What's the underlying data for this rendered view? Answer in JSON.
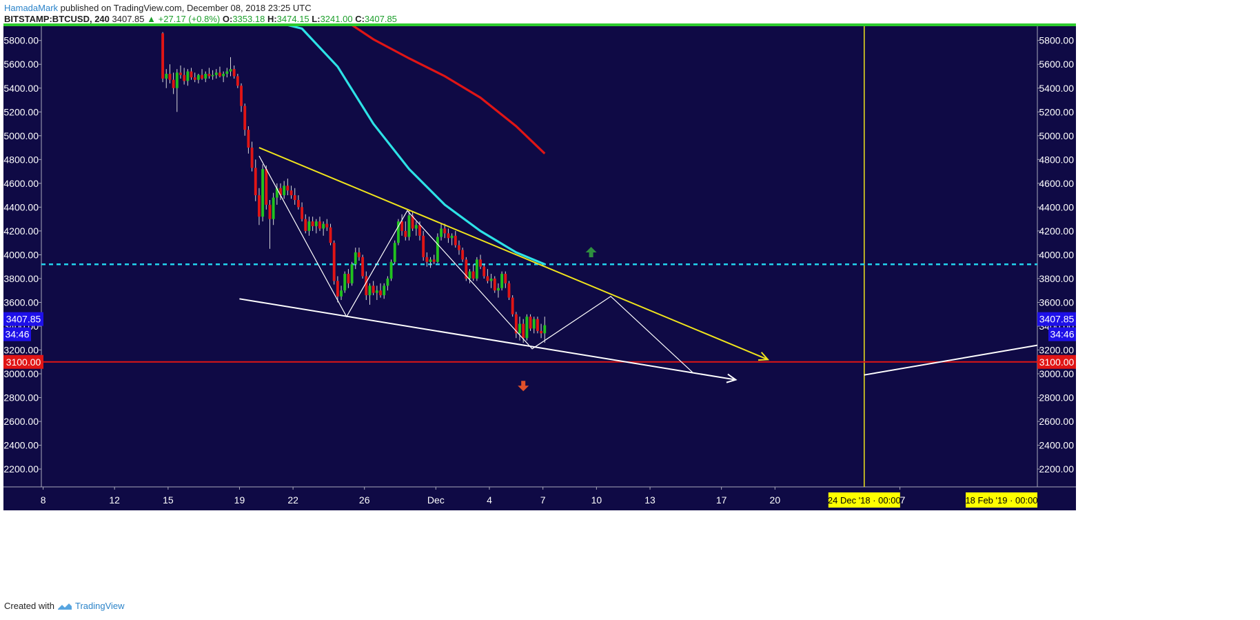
{
  "header": {
    "author": "HamadaMark",
    "published": " published on TradingView.com, December 08, 2018 23:25 UTC",
    "symbol": "BITSTAMP:BTCUSD, 240",
    "last": "3407.85",
    "change": "▲ +27.17 (+0.8%)",
    "o_label": "O:",
    "o": "3353.18",
    "h_label": "H:",
    "h": "3474.15",
    "l_label": "L:",
    "l": "3241.00",
    "c_label": "C:",
    "c": "3407.85"
  },
  "footer": {
    "created_with": "Created with",
    "brand": "TradingView"
  },
  "colors": {
    "background": "#0f0a45",
    "bull": "#21c21f",
    "bear": "#e01515",
    "ma_fast": "#2de2e6",
    "ma_slow": "#e01515",
    "trendline": "#f0e41c",
    "support_line": "#ffffff",
    "dashed_level": "#22d4ee",
    "red_level": "#e01515",
    "price_label": "#1e10e8"
  },
  "chart_data": {
    "type": "candlestick",
    "symbol": "BITSTAMP:BTCUSD",
    "interval": "240",
    "ylim": [
      2050,
      5920
    ],
    "y_ticks": [
      "5800.00",
      "5600.00",
      "5400.00",
      "5200.00",
      "5000.00",
      "4800.00",
      "4600.00",
      "4400.00",
      "4200.00",
      "4000.00",
      "3800.00",
      "3600.00",
      "3400.00",
      "3200.00",
      "3000.00",
      "2800.00",
      "2600.00",
      "2400.00",
      "2200.00"
    ],
    "x_ticks": [
      "8",
      "12",
      "15",
      "19",
      "22",
      "26",
      "Dec",
      "4",
      "7",
      "10",
      "13",
      "17",
      "20",
      "27"
    ],
    "x_tick_pos": [
      8,
      12,
      15,
      19,
      22,
      26,
      30,
      33,
      36,
      39,
      42,
      46,
      49,
      56
    ],
    "x_range": [
      7.9,
      63.7
    ],
    "current_price_label": "3407.85",
    "countdown_label": "34:46",
    "level_label": "3100.00",
    "dashed_level": 3920,
    "red_level": 3100,
    "date_markers": [
      {
        "label": "24 Dec '18 · 00:00",
        "x": 54
      },
      {
        "label": "18 Feb '19 · 00:00",
        "x": 63
      }
    ],
    "candles": [
      [
        14.7,
        5860,
        5870,
        5450,
        5480
      ],
      [
        14.9,
        5480,
        5560,
        5400,
        5520
      ],
      [
        15.1,
        5520,
        5600,
        5440,
        5470
      ],
      [
        15.3,
        5470,
        5530,
        5350,
        5400
      ],
      [
        15.5,
        5400,
        5560,
        5200,
        5530
      ],
      [
        15.7,
        5530,
        5590,
        5480,
        5510
      ],
      [
        15.9,
        5510,
        5570,
        5430,
        5460
      ],
      [
        16.1,
        5460,
        5560,
        5420,
        5540
      ],
      [
        16.3,
        5540,
        5570,
        5470,
        5490
      ],
      [
        16.5,
        5490,
        5530,
        5450,
        5470
      ],
      [
        16.7,
        5470,
        5520,
        5440,
        5510
      ],
      [
        16.9,
        5510,
        5560,
        5470,
        5480
      ],
      [
        17.1,
        5480,
        5540,
        5450,
        5520
      ],
      [
        17.3,
        5520,
        5570,
        5480,
        5500
      ],
      [
        17.5,
        5500,
        5550,
        5470,
        5510
      ],
      [
        17.7,
        5510,
        5560,
        5480,
        5530
      ],
      [
        17.9,
        5530,
        5580,
        5490,
        5500
      ],
      [
        18.1,
        5500,
        5540,
        5450,
        5520
      ],
      [
        18.3,
        5520,
        5570,
        5490,
        5540
      ],
      [
        18.5,
        5540,
        5660,
        5500,
        5560
      ],
      [
        18.7,
        5560,
        5590,
        5480,
        5500
      ],
      [
        18.9,
        5500,
        5520,
        5400,
        5420
      ],
      [
        19.1,
        5420,
        5440,
        5200,
        5250
      ],
      [
        19.3,
        5250,
        5270,
        5000,
        5050
      ],
      [
        19.5,
        5050,
        5080,
        4850,
        4900
      ],
      [
        19.7,
        4900,
        4950,
        4700,
        4730
      ],
      [
        19.9,
        4730,
        4800,
        4450,
        4500
      ],
      [
        20.1,
        4500,
        4560,
        4250,
        4320
      ],
      [
        20.3,
        4320,
        4760,
        4280,
        4720
      ],
      [
        20.5,
        4720,
        4750,
        4380,
        4420
      ],
      [
        20.7,
        4420,
        4460,
        4050,
        4300
      ],
      [
        20.9,
        4300,
        4520,
        4250,
        4480
      ],
      [
        21.1,
        4480,
        4600,
        4420,
        4560
      ],
      [
        21.3,
        4560,
        4600,
        4460,
        4500
      ],
      [
        21.5,
        4500,
        4620,
        4470,
        4580
      ],
      [
        21.7,
        4580,
        4640,
        4500,
        4540
      ],
      [
        21.9,
        4540,
        4580,
        4470,
        4500
      ],
      [
        22.1,
        4500,
        4560,
        4420,
        4460
      ],
      [
        22.3,
        4460,
        4500,
        4380,
        4400
      ],
      [
        22.5,
        4400,
        4440,
        4280,
        4300
      ],
      [
        22.7,
        4300,
        4340,
        4180,
        4200
      ],
      [
        22.9,
        4200,
        4320,
        4160,
        4280
      ],
      [
        23.1,
        4280,
        4320,
        4200,
        4240
      ],
      [
        23.3,
        4240,
        4300,
        4180,
        4280
      ],
      [
        23.5,
        4280,
        4320,
        4200,
        4220
      ],
      [
        23.7,
        4220,
        4280,
        4160,
        4260
      ],
      [
        23.9,
        4260,
        4300,
        4200,
        4230
      ],
      [
        24.1,
        4230,
        4260,
        4080,
        4100
      ],
      [
        24.3,
        4100,
        4120,
        3750,
        3780
      ],
      [
        24.5,
        3780,
        3820,
        3600,
        3650
      ],
      [
        24.7,
        3650,
        3740,
        3620,
        3700
      ],
      [
        24.9,
        3700,
        3860,
        3680,
        3840
      ],
      [
        25.1,
        3840,
        3880,
        3720,
        3760
      ],
      [
        25.3,
        3760,
        3940,
        3740,
        3920
      ],
      [
        25.5,
        3920,
        4060,
        3880,
        4020
      ],
      [
        25.7,
        4020,
        4060,
        3950,
        3980
      ],
      [
        25.9,
        3980,
        4000,
        3800,
        3820
      ],
      [
        26.1,
        3820,
        3860,
        3620,
        3660
      ],
      [
        26.3,
        3660,
        3760,
        3580,
        3740
      ],
      [
        26.5,
        3740,
        3780,
        3660,
        3680
      ],
      [
        26.7,
        3680,
        3740,
        3620,
        3700
      ],
      [
        26.9,
        3700,
        3760,
        3640,
        3660
      ],
      [
        27.1,
        3660,
        3760,
        3630,
        3740
      ],
      [
        27.3,
        3740,
        3820,
        3700,
        3800
      ],
      [
        27.5,
        3800,
        3960,
        3780,
        3940
      ],
      [
        27.7,
        3940,
        4120,
        3920,
        4100
      ],
      [
        27.9,
        4100,
        4300,
        4080,
        4280
      ],
      [
        28.1,
        4280,
        4340,
        4160,
        4200
      ],
      [
        28.3,
        4200,
        4280,
        4120,
        4150
      ],
      [
        28.5,
        4150,
        4380,
        4120,
        4330
      ],
      [
        28.7,
        4330,
        4360,
        4200,
        4220
      ],
      [
        28.9,
        4220,
        4280,
        4160,
        4250
      ],
      [
        29.1,
        4250,
        4280,
        4120,
        4160
      ],
      [
        29.3,
        4160,
        4200,
        3950,
        3980
      ],
      [
        29.5,
        3980,
        4020,
        3900,
        3940
      ],
      [
        29.7,
        3940,
        3980,
        3890,
        3960
      ],
      [
        29.9,
        3960,
        4000,
        3920,
        3940
      ],
      [
        30.1,
        3940,
        4180,
        3930,
        4150
      ],
      [
        30.3,
        4150,
        4260,
        4120,
        4220
      ],
      [
        30.5,
        4220,
        4260,
        4140,
        4180
      ],
      [
        30.7,
        4180,
        4220,
        4100,
        4140
      ],
      [
        30.9,
        4140,
        4180,
        4080,
        4160
      ],
      [
        31.1,
        4160,
        4200,
        4060,
        4080
      ],
      [
        31.3,
        4080,
        4120,
        4000,
        4040
      ],
      [
        31.5,
        4040,
        4060,
        3940,
        3960
      ],
      [
        31.7,
        3960,
        3980,
        3780,
        3800
      ],
      [
        31.9,
        3800,
        3880,
        3760,
        3860
      ],
      [
        32.1,
        3860,
        3920,
        3780,
        3800
      ],
      [
        32.3,
        3800,
        3980,
        3780,
        3960
      ],
      [
        32.5,
        3960,
        4000,
        3880,
        3900
      ],
      [
        32.7,
        3900,
        3920,
        3800,
        3820
      ],
      [
        32.9,
        3820,
        3880,
        3760,
        3780
      ],
      [
        33.1,
        3780,
        3840,
        3720,
        3800
      ],
      [
        33.3,
        3800,
        3820,
        3680,
        3700
      ],
      [
        33.5,
        3700,
        3760,
        3640,
        3720
      ],
      [
        33.7,
        3720,
        3860,
        3700,
        3840
      ],
      [
        33.9,
        3840,
        3860,
        3720,
        3760
      ],
      [
        34.1,
        3760,
        3780,
        3620,
        3640
      ],
      [
        34.3,
        3640,
        3660,
        3480,
        3500
      ],
      [
        34.5,
        3500,
        3520,
        3300,
        3340
      ],
      [
        34.7,
        3340,
        3480,
        3280,
        3420
      ],
      [
        34.9,
        3420,
        3460,
        3260,
        3300
      ],
      [
        35.1,
        3300,
        3500,
        3280,
        3480
      ],
      [
        35.3,
        3480,
        3500,
        3360,
        3380
      ],
      [
        35.5,
        3380,
        3480,
        3340,
        3460
      ],
      [
        35.7,
        3460,
        3480,
        3340,
        3360
      ],
      [
        35.9,
        3360,
        3420,
        3300,
        3340
      ],
      [
        36.1,
        3340,
        3480,
        3260,
        3408
      ]
    ],
    "series": [
      {
        "name": "",
        "type": "line",
        "points": [
          [
            19.3,
            6020
          ],
          [
            22.5,
            5900
          ],
          [
            24.5,
            5580
          ],
          [
            26.5,
            5100
          ],
          [
            28.5,
            4720
          ],
          [
            30.5,
            4420
          ],
          [
            32.5,
            4200
          ],
          [
            34.5,
            4020
          ],
          [
            36.1,
            3920
          ]
        ]
      },
      {
        "name": "",
        "type": "line",
        "points": [
          [
            24.1,
            6050
          ],
          [
            26.5,
            5810
          ],
          [
            28.5,
            5650
          ],
          [
            30.5,
            5500
          ],
          [
            32.5,
            5320
          ],
          [
            34.5,
            5080
          ],
          [
            36.1,
            4850
          ]
        ]
      }
    ],
    "drawings": [
      {
        "kind": "trendline",
        "points": [
          [
            20.1,
            4900
          ],
          [
            48.6,
            3120
          ]
        ],
        "arrow": true
      },
      {
        "kind": "trendline",
        "points": [
          [
            19.0,
            3630
          ],
          [
            46.8,
            2950
          ]
        ],
        "arrow": true
      },
      {
        "kind": "zigzag",
        "points": [
          [
            20.1,
            4830
          ],
          [
            25.0,
            3480
          ],
          [
            28.4,
            4370
          ],
          [
            35.4,
            3210
          ],
          [
            39.8,
            3650
          ],
          [
            44.4,
            3010
          ]
        ]
      },
      {
        "kind": "ray",
        "points": [
          [
            54,
            2990
          ],
          [
            63.7,
            3240
          ]
        ]
      }
    ],
    "markers": [
      {
        "kind": "arrow-up",
        "x": 38.7,
        "y": 4020
      },
      {
        "kind": "arrow-down",
        "x": 34.9,
        "y": 2900
      }
    ]
  }
}
